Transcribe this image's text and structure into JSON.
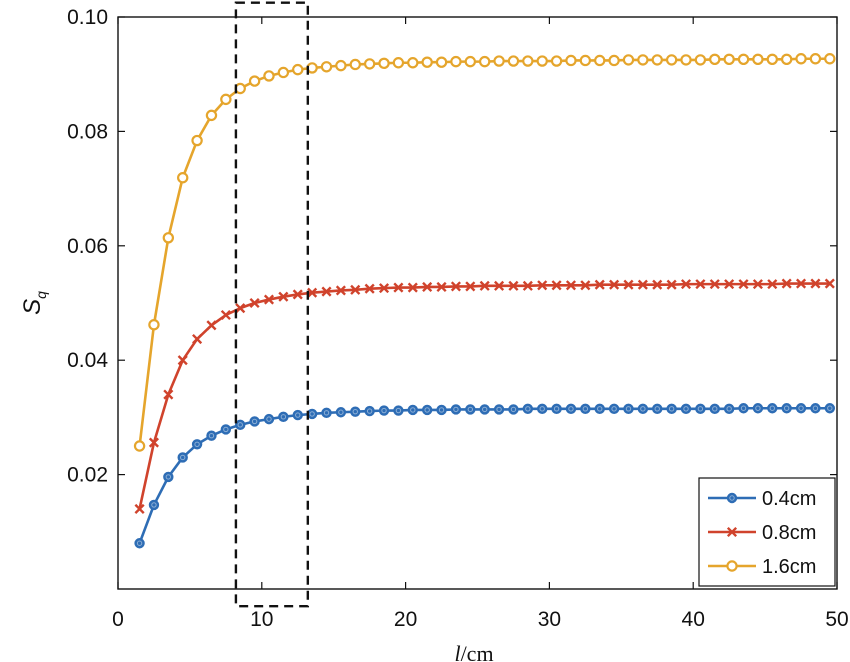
{
  "chart_data": {
    "type": "line",
    "title": "",
    "xlabel": {
      "var": "l",
      "unit": "/cm"
    },
    "ylabel": {
      "var": "S",
      "sub": "q"
    },
    "xlim": [
      0,
      50
    ],
    "ylim": [
      0.0,
      0.1
    ],
    "xticks": [
      "0",
      "10",
      "20",
      "30",
      "40",
      "50"
    ],
    "yticks": [
      "0.02",
      "0.04",
      "0.06",
      "0.08",
      "0.10"
    ],
    "grid": false,
    "legend_position": "bottom-right",
    "highlight_box": {
      "x": [
        8.2,
        13.2
      ],
      "y": [
        -0.003,
        0.1025
      ]
    },
    "x": [
      1.5,
      2.5,
      3.5,
      4.5,
      5.5,
      6.5,
      7.5,
      8.5,
      9.5,
      10.5,
      11.5,
      12.5,
      13.5,
      14.5,
      15.5,
      16.5,
      17.5,
      18.5,
      19.5,
      20.5,
      21.5,
      22.5,
      23.5,
      24.5,
      25.5,
      26.5,
      27.5,
      28.5,
      29.5,
      30.5,
      31.5,
      32.5,
      33.5,
      34.5,
      35.5,
      36.5,
      37.5,
      38.5,
      39.5,
      40.5,
      41.5,
      42.5,
      43.5,
      44.5,
      45.5,
      46.5,
      47.5,
      48.5,
      49.5
    ],
    "series": [
      {
        "name": "0.4cm",
        "color": "#2e6db5",
        "marker": "circle-filled",
        "values": [
          0.008,
          0.0147,
          0.0196,
          0.023,
          0.0253,
          0.0268,
          0.0279,
          0.0287,
          0.0293,
          0.0297,
          0.0301,
          0.0304,
          0.0306,
          0.0308,
          0.0309,
          0.031,
          0.0311,
          0.0312,
          0.0312,
          0.0313,
          0.0313,
          0.0313,
          0.0314,
          0.0314,
          0.0314,
          0.0314,
          0.0314,
          0.0315,
          0.0315,
          0.0315,
          0.0315,
          0.0315,
          0.0315,
          0.0315,
          0.0315,
          0.0315,
          0.0315,
          0.0315,
          0.0315,
          0.0315,
          0.0315,
          0.0315,
          0.0316,
          0.0316,
          0.0316,
          0.0316,
          0.0316,
          0.0316,
          0.0316
        ]
      },
      {
        "name": "0.8cm",
        "color": "#d0432c",
        "marker": "x",
        "values": [
          0.014,
          0.0256,
          0.034,
          0.04,
          0.0437,
          0.0461,
          0.0479,
          0.0491,
          0.05,
          0.0506,
          0.0511,
          0.0515,
          0.0518,
          0.052,
          0.0522,
          0.0523,
          0.0525,
          0.0526,
          0.0527,
          0.0527,
          0.0528,
          0.0528,
          0.0529,
          0.0529,
          0.053,
          0.053,
          0.053,
          0.053,
          0.0531,
          0.0531,
          0.0531,
          0.0531,
          0.0532,
          0.0532,
          0.0532,
          0.0532,
          0.0532,
          0.0532,
          0.0533,
          0.0533,
          0.0533,
          0.0533,
          0.0533,
          0.0533,
          0.0533,
          0.0534,
          0.0534,
          0.0534,
          0.0534
        ]
      },
      {
        "name": "1.6cm",
        "color": "#e5a52c",
        "marker": "circle-open",
        "values": [
          0.025,
          0.0462,
          0.0614,
          0.0719,
          0.0784,
          0.0828,
          0.0856,
          0.0875,
          0.0888,
          0.0897,
          0.0903,
          0.0908,
          0.0911,
          0.0913,
          0.0915,
          0.0917,
          0.0918,
          0.0919,
          0.092,
          0.092,
          0.0921,
          0.0921,
          0.0922,
          0.0922,
          0.0922,
          0.0923,
          0.0923,
          0.0923,
          0.0923,
          0.0923,
          0.0924,
          0.0924,
          0.0924,
          0.0924,
          0.0925,
          0.0925,
          0.0925,
          0.0925,
          0.0925,
          0.0925,
          0.0926,
          0.0926,
          0.0926,
          0.0926,
          0.0926,
          0.0926,
          0.0927,
          0.0927,
          0.0927
        ]
      }
    ]
  }
}
